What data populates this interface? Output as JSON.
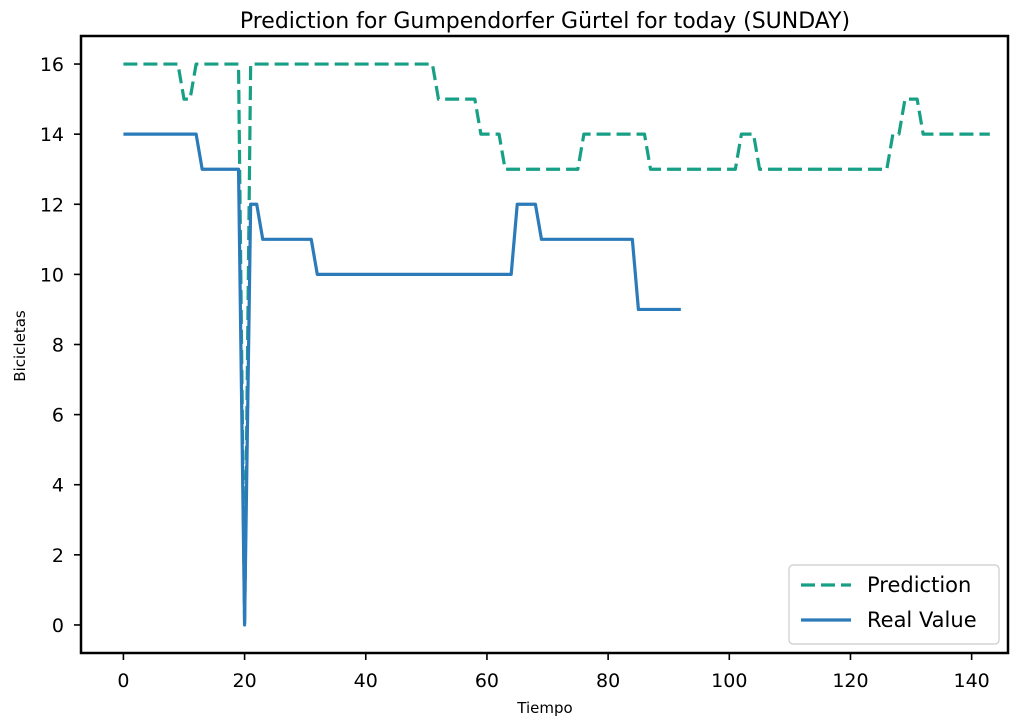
{
  "chart_data": {
    "type": "line",
    "title": "Prediction for Gumpendorfer Gürtel for today (SUNDAY)",
    "xlabel": "Tiempo",
    "ylabel": "Bicicletas",
    "xlim": [
      -7,
      146
    ],
    "ylim": [
      -0.8,
      16.8
    ],
    "xticks": [
      0,
      20,
      40,
      60,
      80,
      100,
      120,
      140
    ],
    "yticks": [
      0,
      2,
      4,
      6,
      8,
      10,
      12,
      14,
      16
    ],
    "grid": false,
    "legend_position": "lower-right",
    "series": [
      {
        "name": "Prediction",
        "style": "dashed",
        "color": "#17a085",
        "points": [
          [
            0,
            16
          ],
          [
            9,
            16
          ],
          [
            10,
            15
          ],
          [
            11,
            15
          ],
          [
            12,
            16
          ],
          [
            19,
            16
          ],
          [
            20,
            0
          ],
          [
            21,
            16
          ],
          [
            51,
            16
          ],
          [
            52,
            15
          ],
          [
            58,
            15
          ],
          [
            59,
            14
          ],
          [
            62,
            14
          ],
          [
            63,
            13
          ],
          [
            75,
            13
          ],
          [
            76,
            14
          ],
          [
            86,
            14
          ],
          [
            87,
            13
          ],
          [
            101,
            13
          ],
          [
            102,
            14
          ],
          [
            104,
            14
          ],
          [
            105,
            13
          ],
          [
            126,
            13
          ],
          [
            127,
            14
          ],
          [
            128,
            14
          ],
          [
            129,
            15
          ],
          [
            131,
            15
          ],
          [
            132,
            14
          ],
          [
            143,
            14
          ]
        ]
      },
      {
        "name": "Real Value",
        "style": "solid",
        "color": "#2b7bba",
        "points": [
          [
            0,
            14
          ],
          [
            12,
            14
          ],
          [
            13,
            13
          ],
          [
            19,
            13
          ],
          [
            20,
            0
          ],
          [
            21,
            12
          ],
          [
            22,
            12
          ],
          [
            23,
            11
          ],
          [
            31,
            11
          ],
          [
            32,
            10
          ],
          [
            64,
            10
          ],
          [
            65,
            12
          ],
          [
            68,
            12
          ],
          [
            69,
            11
          ],
          [
            84,
            11
          ],
          [
            85,
            9
          ],
          [
            92,
            9
          ]
        ]
      }
    ]
  }
}
